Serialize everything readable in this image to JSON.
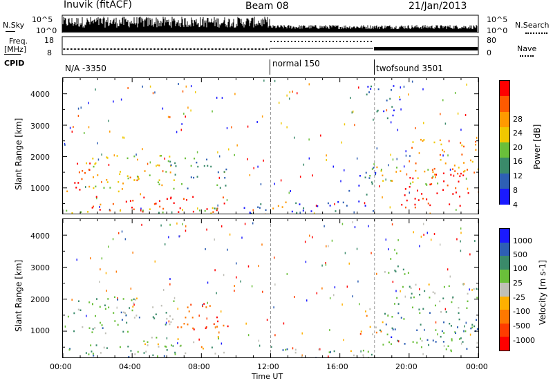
{
  "header": {
    "station": "Inuvik (fitACF)",
    "beam": "Beam 08",
    "date": "21/Jan/2013"
  },
  "top_panels": {
    "nsky_label": "N.Sky",
    "nsky_ticks": [
      "10^5",
      "10^0"
    ],
    "nsearch_label": "N.Search",
    "nsearch_ticks": [
      "10^5",
      "10^0"
    ],
    "freq_label": "Freq.",
    "freq_unit": "[MHz]",
    "freq_ticks": [
      "18",
      "8"
    ],
    "nave_label": "Nave",
    "nave_ticks": [
      "80",
      "0"
    ],
    "cpid_label": "CPID",
    "cpid_segments": [
      "N/A -3350",
      "normal 150",
      "twofsound 3501"
    ]
  },
  "chart_data": [
    {
      "type": "heatmap",
      "title": "",
      "xlabel": "Time UT",
      "ylabel": "Slant Range [km]",
      "x_ticks": [
        "00:00",
        "04:00",
        "08:00",
        "12:00",
        "16:00",
        "20:00",
        "00:00"
      ],
      "y_ticks": [
        "1000",
        "2000",
        "3000",
        "4000"
      ],
      "ylim": [
        180,
        4500
      ],
      "colorbar_label": "Power [dB]",
      "colorbar_ticks": [
        "4",
        "8",
        "12",
        "16",
        "20",
        "24",
        "28"
      ],
      "colorbar_colors": [
        "#1a1aff",
        "#2e5fb4",
        "#3a8a6a",
        "#6abf3a",
        "#f0c800",
        "#ff9a00",
        "#ff5a00",
        "#ff0000"
      ],
      "regions": [
        {
          "t": [
            0.2,
            1.8
          ],
          "r": [
            900,
            1900
          ],
          "level": 0.85
        },
        {
          "t": [
            1.3,
            4.5
          ],
          "r": [
            900,
            2100
          ],
          "level": 0.6
        },
        {
          "t": [
            4.0,
            6.2
          ],
          "r": [
            1100,
            2100
          ],
          "level": 0.55
        },
        {
          "t": [
            6.0,
            9.5
          ],
          "r": [
            1000,
            2000
          ],
          "level": 0.35
        },
        {
          "t": [
            1.5,
            9.8
          ],
          "r": [
            250,
            750
          ],
          "level": 0.92
        },
        {
          "t": [
            0.0,
            9.8
          ],
          "r": [
            200,
            400
          ],
          "level": 0.45
        },
        {
          "t": [
            9.5,
            12.0
          ],
          "r": [
            200,
            600
          ],
          "level": 0.2
        },
        {
          "t": [
            12.0,
            13.0
          ],
          "r": [
            200,
            700
          ],
          "level": 0.8
        },
        {
          "t": [
            13.0,
            18.0
          ],
          "r": [
            200,
            600
          ],
          "level": 0.15
        },
        {
          "t": [
            16.5,
            18.2
          ],
          "r": [
            800,
            1800
          ],
          "level": 0.25
        },
        {
          "t": [
            18.0,
            22.0
          ],
          "r": [
            1100,
            1700
          ],
          "level": 0.55
        },
        {
          "t": [
            19.5,
            24.0
          ],
          "r": [
            400,
            1500
          ],
          "level": 0.95
        },
        {
          "t": [
            20.0,
            24.0
          ],
          "r": [
            1500,
            2600
          ],
          "level": 0.7
        },
        {
          "t": [
            17.5,
            19.5
          ],
          "r": [
            3200,
            4300
          ],
          "level": 0.15
        }
      ]
    },
    {
      "type": "heatmap",
      "title": "",
      "xlabel": "Time UT",
      "ylabel": "Slant Range [km]",
      "x_ticks": [
        "00:00",
        "04:00",
        "08:00",
        "12:00",
        "16:00",
        "20:00",
        "00:00"
      ],
      "y_ticks": [
        "1000",
        "2000",
        "3000",
        "4000"
      ],
      "ylim": [
        180,
        4500
      ],
      "colorbar_label": "Velocity [m s-1]",
      "colorbar_ticks": [
        "1000",
        "500",
        "100",
        "25",
        "-25",
        "-100",
        "-500",
        "-1000"
      ],
      "colorbar_colors": [
        "#1a1aff",
        "#2e5fb4",
        "#3a8a6a",
        "#6abf3a",
        "#c0c0b8",
        "#ffb000",
        "#ff7800",
        "#ff3c00",
        "#ff0000"
      ],
      "regions": [
        {
          "t": [
            0.2,
            4.5
          ],
          "r": [
            900,
            2100
          ],
          "level": 0.65
        },
        {
          "t": [
            4.0,
            6.5
          ],
          "r": [
            1200,
            2100
          ],
          "level": 0.6
        },
        {
          "t": [
            6.5,
            9.5
          ],
          "r": [
            1000,
            1900
          ],
          "level": 0.15
        },
        {
          "t": [
            0.0,
            9.8
          ],
          "r": [
            200,
            600
          ],
          "level": 0.65
        },
        {
          "t": [
            4.5,
            9.5
          ],
          "r": [
            450,
            850
          ],
          "level": 0.45
        },
        {
          "t": [
            12.0,
            13.0
          ],
          "r": [
            200,
            700
          ],
          "level": 0.7
        },
        {
          "t": [
            13.0,
            18.0
          ],
          "r": [
            200,
            500
          ],
          "level": 0.6
        },
        {
          "t": [
            17.0,
            18.5
          ],
          "r": [
            900,
            1800
          ],
          "level": 0.35
        },
        {
          "t": [
            18.0,
            24.0
          ],
          "r": [
            400,
            1600
          ],
          "level": 0.72
        },
        {
          "t": [
            19.0,
            24.0
          ],
          "r": [
            1600,
            2500
          ],
          "level": 0.6
        },
        {
          "t": [
            18.5,
            20.0
          ],
          "r": [
            2800,
            3600
          ],
          "level": 0.6
        }
      ]
    }
  ]
}
